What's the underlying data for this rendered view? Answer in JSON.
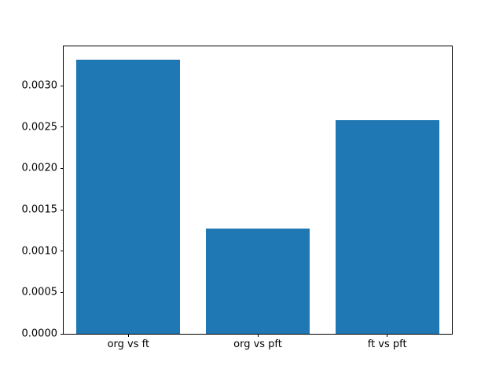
{
  "chart_data": {
    "type": "bar",
    "categories": [
      "org vs ft",
      "org vs pft",
      "ft vs pft"
    ],
    "values": [
      0.00331,
      0.00127,
      0.00258
    ],
    "title": "",
    "xlabel": "",
    "ylabel": "",
    "ylim": [
      0,
      0.003476
    ],
    "xlim": [
      -0.5,
      2.5
    ],
    "bar_width": 0.8,
    "yticks": [
      0.0,
      0.0005,
      0.001,
      0.0015,
      0.002,
      0.0025,
      0.003
    ],
    "ytick_labels": [
      "0.0000",
      "0.0005",
      "0.0010",
      "0.0015",
      "0.0020",
      "0.0025",
      "0.0030"
    ],
    "bar_color": "#1f77b4",
    "background_color": "#ffffff",
    "spine_color": "#000000",
    "grid": false,
    "legend": null
  }
}
